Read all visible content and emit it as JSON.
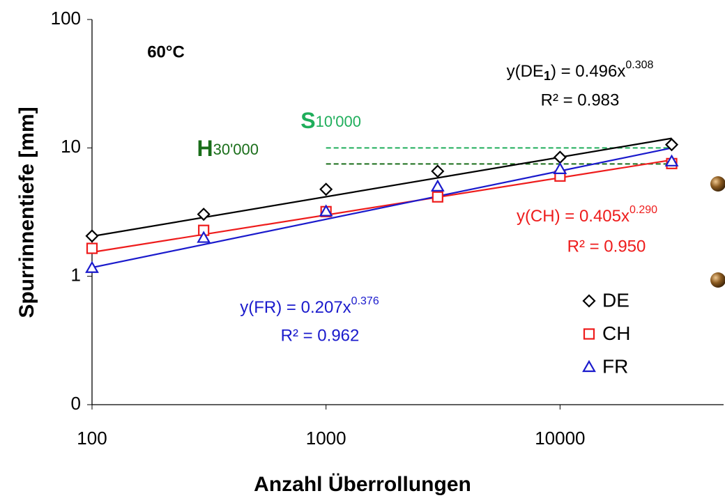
{
  "chart_data": {
    "type": "scatter",
    "annotation": "60°C",
    "x_label": "Anzahl Überrollungen",
    "y_label": "Spurrinnentiefe [mm]",
    "x_log": true,
    "y_log": true,
    "grid": false,
    "legend": "lower right",
    "xlim": [
      100,
      50000
    ],
    "ylim": [
      0.1,
      100
    ],
    "xticks": [
      100,
      1000,
      10000
    ],
    "yticks": [
      {
        "value": 0.1,
        "label": "0"
      },
      1,
      10,
      100
    ],
    "x": [
      100,
      300,
      1000,
      3000,
      10000,
      30000
    ],
    "series": [
      {
        "name": "DE",
        "color": "#000000",
        "marker": "diamond",
        "values": [
          2.06,
          3.04,
          4.76,
          6.58,
          8.45,
          10.6
        ],
        "trendline": {
          "a": 0.496,
          "b": 0.308
        },
        "equation": {
          "text": "y(DE",
          "sub": "1",
          "rest": ") = 0.496x",
          "sup": "0.308"
        },
        "r2_label": "R² = 0.983"
      },
      {
        "name": "CH",
        "color": "#ee1c1c",
        "marker": "square",
        "values": [
          1.65,
          2.28,
          3.19,
          4.15,
          6.03,
          7.55
        ],
        "trendline": {
          "a": 0.405,
          "b": 0.29
        },
        "equation": {
          "text": "y(CH) = 0.405x",
          "sup": "0.290"
        },
        "r2_label": "R² = 0.950"
      },
      {
        "name": "FR",
        "color": "#1a1acc",
        "marker": "triangle",
        "values": [
          1.16,
          1.99,
          3.2,
          5.0,
          6.83,
          7.84
        ],
        "trendline": {
          "a": 0.207,
          "b": 0.376
        },
        "equation": {
          "text": "y(FR) = 0.207x",
          "sup": "0.376"
        },
        "r2_label": "R² = 0.962"
      }
    ],
    "reference_lines": [
      {
        "label": "S",
        "sublabel": "10'000",
        "y": 10,
        "x": [
          1000,
          30000
        ],
        "color": "#1fae5b"
      },
      {
        "label": "H",
        "sublabel": "30'000",
        "y": 7.5,
        "x": [
          1000,
          30000
        ],
        "color": "#1a6e1a"
      }
    ]
  }
}
